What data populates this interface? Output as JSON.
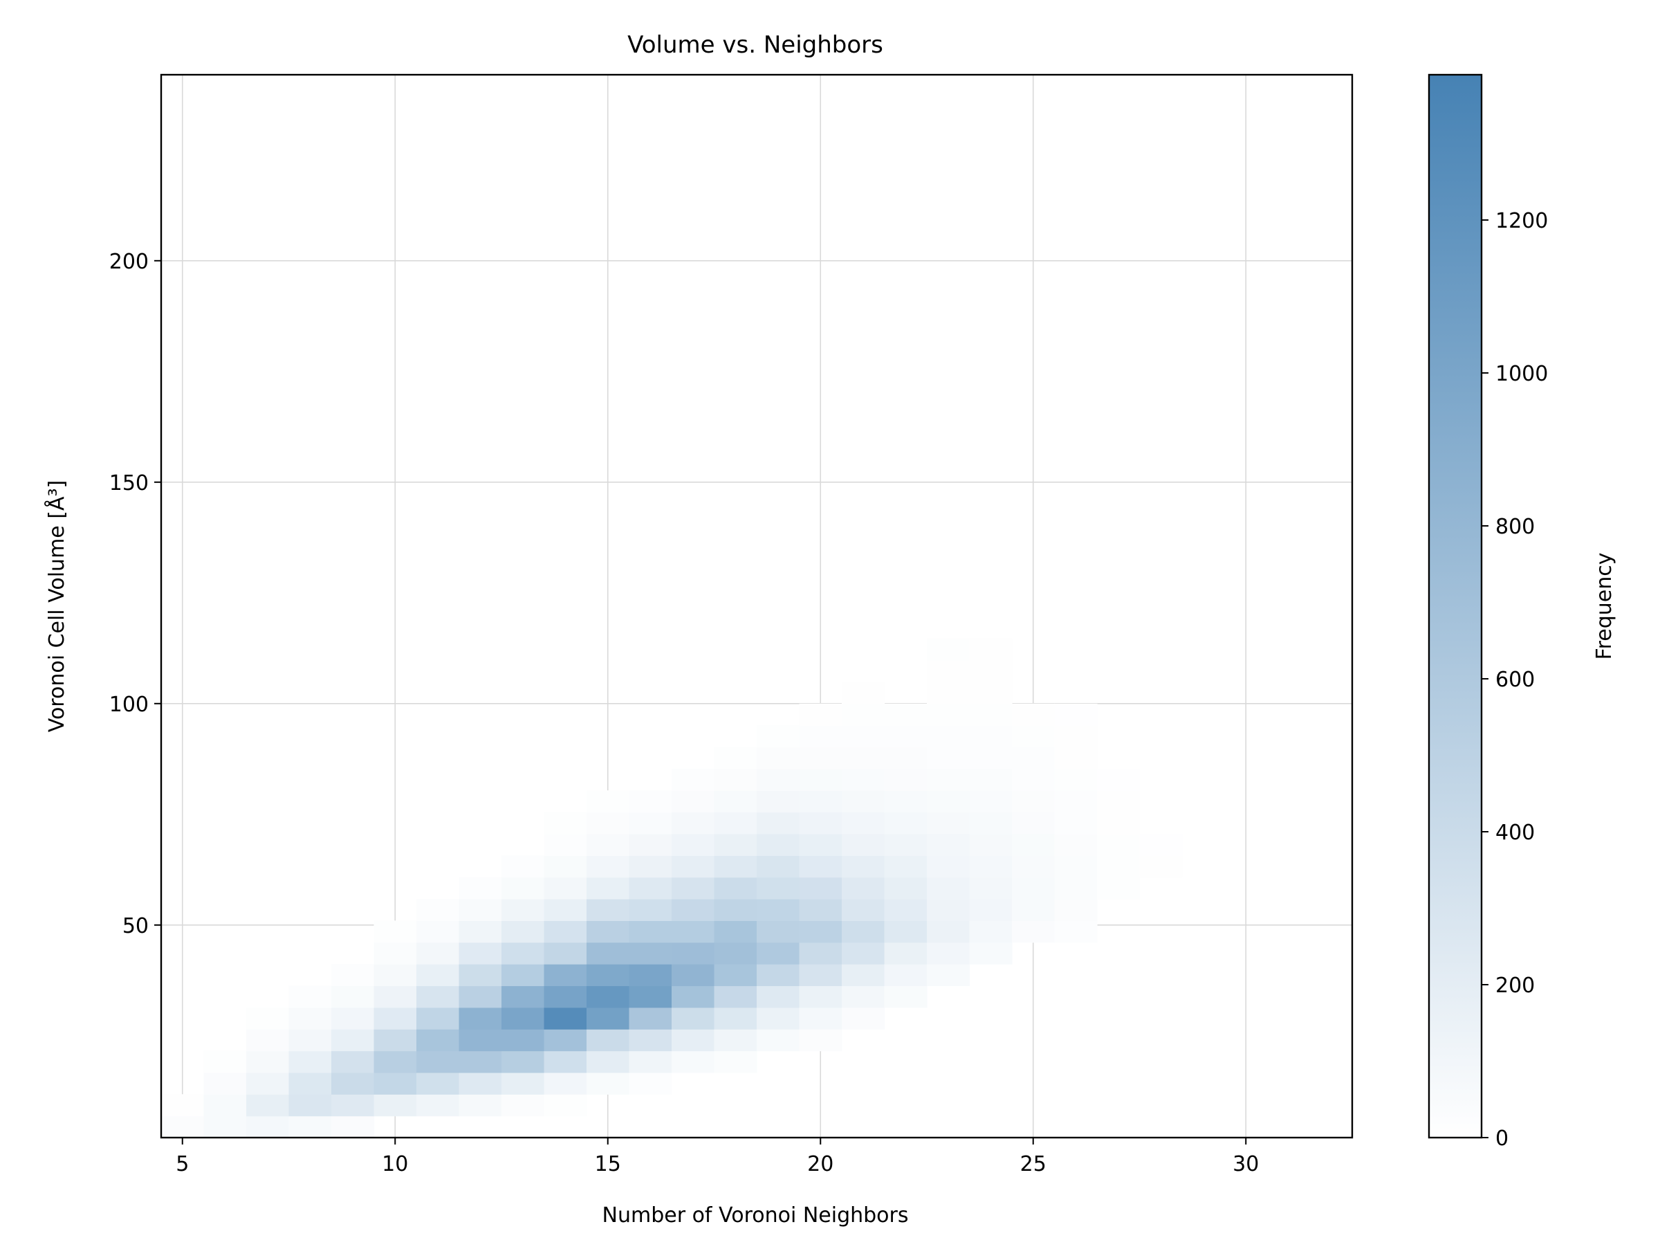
{
  "chart_data": {
    "type": "heatmap",
    "title": "Volume vs. Neighbors",
    "xlabel": "Number of Voronoi Neighbors",
    "ylabel": "Voronoi Cell Volume [Å³]",
    "xlim": [
      4.5,
      32.5
    ],
    "ylim": [
      2,
      242
    ],
    "xticks": [
      5,
      10,
      15,
      20,
      25,
      30
    ],
    "yticks": [
      50,
      100,
      150,
      200
    ],
    "grid": true,
    "colorbar": {
      "label": "Frequency",
      "range": [
        0,
        1390
      ],
      "ticks": [
        0,
        200,
        400,
        600,
        800,
        1000,
        1200
      ],
      "colors": [
        "#ffffff",
        "#4682b4"
      ]
    },
    "bins": {
      "x_start": 5,
      "x_width": 1,
      "y_start": 2,
      "y_width": 4.9
    },
    "cells": [
      [
        5,
        1,
        30
      ],
      [
        5,
        2,
        10
      ],
      [
        6,
        1,
        60
      ],
      [
        6,
        2,
        60
      ],
      [
        6,
        3,
        40
      ],
      [
        6,
        4,
        15
      ],
      [
        7,
        1,
        80
      ],
      [
        7,
        2,
        180
      ],
      [
        7,
        3,
        110
      ],
      [
        7,
        4,
        70
      ],
      [
        7,
        5,
        40
      ],
      [
        7,
        6,
        15
      ],
      [
        8,
        1,
        60
      ],
      [
        8,
        2,
        280
      ],
      [
        8,
        3,
        260
      ],
      [
        8,
        4,
        170
      ],
      [
        8,
        5,
        90
      ],
      [
        8,
        6,
        55
      ],
      [
        8,
        7,
        25
      ],
      [
        9,
        1,
        40
      ],
      [
        9,
        2,
        240
      ],
      [
        9,
        3,
        400
      ],
      [
        9,
        4,
        330
      ],
      [
        9,
        5,
        170
      ],
      [
        9,
        6,
        100
      ],
      [
        9,
        7,
        50
      ],
      [
        9,
        8,
        25
      ],
      [
        10,
        2,
        160
      ],
      [
        10,
        3,
        450
      ],
      [
        10,
        4,
        530
      ],
      [
        10,
        5,
        400
      ],
      [
        10,
        6,
        230
      ],
      [
        10,
        7,
        130
      ],
      [
        10,
        8,
        70
      ],
      [
        10,
        9,
        35
      ],
      [
        10,
        10,
        15
      ],
      [
        11,
        2,
        110
      ],
      [
        11,
        3,
        350
      ],
      [
        11,
        4,
        610
      ],
      [
        11,
        5,
        650
      ],
      [
        11,
        6,
        470
      ],
      [
        11,
        7,
        300
      ],
      [
        11,
        8,
        170
      ],
      [
        11,
        9,
        90
      ],
      [
        11,
        10,
        45
      ],
      [
        11,
        11,
        20
      ],
      [
        12,
        2,
        70
      ],
      [
        12,
        3,
        250
      ],
      [
        12,
        4,
        610
      ],
      [
        12,
        5,
        820
      ],
      [
        12,
        6,
        860
      ],
      [
        12,
        7,
        520
      ],
      [
        12,
        8,
        380
      ],
      [
        12,
        9,
        230
      ],
      [
        12,
        10,
        115
      ],
      [
        12,
        11,
        55
      ],
      [
        12,
        12,
        25
      ],
      [
        13,
        2,
        30
      ],
      [
        13,
        3,
        180
      ],
      [
        13,
        4,
        550
      ],
      [
        13,
        5,
        820
      ],
      [
        13,
        6,
        1000
      ],
      [
        13,
        7,
        860
      ],
      [
        13,
        8,
        560
      ],
      [
        13,
        9,
        360
      ],
      [
        13,
        10,
        200
      ],
      [
        13,
        11,
        110
      ],
      [
        13,
        12,
        50
      ],
      [
        13,
        13,
        25
      ],
      [
        14,
        2,
        15
      ],
      [
        14,
        3,
        100
      ],
      [
        14,
        4,
        360
      ],
      [
        14,
        5,
        690
      ],
      [
        14,
        6,
        1280
      ],
      [
        14,
        7,
        1020
      ],
      [
        14,
        8,
        860
      ],
      [
        14,
        9,
        460
      ],
      [
        14,
        10,
        320
      ],
      [
        14,
        11,
        170
      ],
      [
        14,
        12,
        90
      ],
      [
        14,
        13,
        50
      ],
      [
        14,
        14,
        25
      ],
      [
        14,
        15,
        15
      ],
      [
        15,
        3,
        50
      ],
      [
        15,
        4,
        200
      ],
      [
        15,
        5,
        400
      ],
      [
        15,
        6,
        1050
      ],
      [
        15,
        7,
        1150
      ],
      [
        15,
        8,
        960
      ],
      [
        15,
        9,
        720
      ],
      [
        15,
        10,
        520
      ],
      [
        15,
        11,
        330
      ],
      [
        15,
        12,
        170
      ],
      [
        15,
        13,
        100
      ],
      [
        15,
        14,
        55
      ],
      [
        15,
        15,
        30
      ],
      [
        15,
        16,
        15
      ],
      [
        16,
        3,
        25
      ],
      [
        16,
        4,
        110
      ],
      [
        16,
        5,
        310
      ],
      [
        16,
        6,
        640
      ],
      [
        16,
        7,
        1050
      ],
      [
        16,
        8,
        1000
      ],
      [
        16,
        9,
        720
      ],
      [
        16,
        10,
        560
      ],
      [
        16,
        11,
        360
      ],
      [
        16,
        12,
        250
      ],
      [
        16,
        13,
        140
      ],
      [
        16,
        14,
        85
      ],
      [
        16,
        15,
        45
      ],
      [
        16,
        16,
        25
      ],
      [
        17,
        4,
        60
      ],
      [
        17,
        5,
        190
      ],
      [
        17,
        6,
        380
      ],
      [
        17,
        7,
        680
      ],
      [
        17,
        8,
        830
      ],
      [
        17,
        9,
        730
      ],
      [
        17,
        10,
        560
      ],
      [
        17,
        11,
        430
      ],
      [
        17,
        12,
        310
      ],
      [
        17,
        13,
        190
      ],
      [
        17,
        14,
        120
      ],
      [
        17,
        15,
        75
      ],
      [
        17,
        16,
        40
      ],
      [
        17,
        17,
        20
      ],
      [
        18,
        4,
        35
      ],
      [
        18,
        5,
        110
      ],
      [
        18,
        6,
        260
      ],
      [
        18,
        7,
        430
      ],
      [
        18,
        8,
        650
      ],
      [
        18,
        9,
        700
      ],
      [
        18,
        10,
        650
      ],
      [
        18,
        11,
        480
      ],
      [
        18,
        12,
        390
      ],
      [
        18,
        13,
        250
      ],
      [
        18,
        14,
        160
      ],
      [
        18,
        15,
        95
      ],
      [
        18,
        16,
        60
      ],
      [
        18,
        17,
        30
      ],
      [
        18,
        18,
        15
      ],
      [
        19,
        5,
        60
      ],
      [
        19,
        6,
        150
      ],
      [
        19,
        7,
        250
      ],
      [
        19,
        8,
        440
      ],
      [
        19,
        9,
        600
      ],
      [
        19,
        10,
        510
      ],
      [
        19,
        11,
        470
      ],
      [
        19,
        12,
        350
      ],
      [
        19,
        13,
        290
      ],
      [
        19,
        14,
        200
      ],
      [
        19,
        15,
        140
      ],
      [
        19,
        16,
        85
      ],
      [
        19,
        17,
        55
      ],
      [
        19,
        18,
        30
      ],
      [
        19,
        19,
        15
      ],
      [
        20,
        5,
        30
      ],
      [
        20,
        6,
        80
      ],
      [
        20,
        7,
        150
      ],
      [
        20,
        8,
        310
      ],
      [
        20,
        9,
        400
      ],
      [
        20,
        10,
        500
      ],
      [
        20,
        11,
        400
      ],
      [
        20,
        12,
        340
      ],
      [
        20,
        13,
        230
      ],
      [
        20,
        14,
        170
      ],
      [
        20,
        15,
        120
      ],
      [
        20,
        16,
        80
      ],
      [
        20,
        17,
        50
      ],
      [
        20,
        18,
        30
      ],
      [
        20,
        19,
        20
      ],
      [
        20,
        20,
        10
      ],
      [
        21,
        6,
        40
      ],
      [
        21,
        7,
        90
      ],
      [
        21,
        8,
        180
      ],
      [
        21,
        9,
        300
      ],
      [
        21,
        10,
        370
      ],
      [
        21,
        11,
        280
      ],
      [
        21,
        12,
        240
      ],
      [
        21,
        13,
        190
      ],
      [
        21,
        14,
        130
      ],
      [
        21,
        15,
        100
      ],
      [
        21,
        16,
        70
      ],
      [
        21,
        17,
        45
      ],
      [
        21,
        18,
        30
      ],
      [
        21,
        19,
        20
      ],
      [
        21,
        20,
        15
      ],
      [
        21,
        21,
        10
      ],
      [
        22,
        7,
        50
      ],
      [
        22,
        8,
        100
      ],
      [
        22,
        9,
        160
      ],
      [
        22,
        10,
        250
      ],
      [
        22,
        11,
        210
      ],
      [
        22,
        12,
        180
      ],
      [
        22,
        13,
        150
      ],
      [
        22,
        14,
        110
      ],
      [
        22,
        15,
        80
      ],
      [
        22,
        16,
        60
      ],
      [
        22,
        17,
        40
      ],
      [
        22,
        18,
        30
      ],
      [
        22,
        19,
        20
      ],
      [
        22,
        20,
        12
      ],
      [
        23,
        8,
        60
      ],
      [
        23,
        9,
        100
      ],
      [
        23,
        10,
        140
      ],
      [
        23,
        11,
        130
      ],
      [
        23,
        12,
        120
      ],
      [
        23,
        13,
        100
      ],
      [
        23,
        14,
        90
      ],
      [
        23,
        15,
        70
      ],
      [
        23,
        16,
        50
      ],
      [
        23,
        17,
        35
      ],
      [
        23,
        18,
        25
      ],
      [
        23,
        19,
        20
      ],
      [
        23,
        20,
        15
      ],
      [
        23,
        21,
        10
      ],
      [
        23,
        22,
        10
      ],
      [
        23,
        23,
        15
      ],
      [
        24,
        9,
        60
      ],
      [
        24,
        10,
        80
      ],
      [
        24,
        11,
        100
      ],
      [
        24,
        12,
        90
      ],
      [
        24,
        13,
        80
      ],
      [
        24,
        14,
        70
      ],
      [
        24,
        15,
        60
      ],
      [
        24,
        16,
        45
      ],
      [
        24,
        17,
        35
      ],
      [
        24,
        18,
        25
      ],
      [
        24,
        19,
        20
      ],
      [
        24,
        20,
        15
      ],
      [
        24,
        21,
        10
      ],
      [
        24,
        22,
        10
      ],
      [
        24,
        23,
        10
      ],
      [
        25,
        10,
        40
      ],
      [
        25,
        11,
        60
      ],
      [
        25,
        12,
        60
      ],
      [
        25,
        13,
        55
      ],
      [
        25,
        14,
        50
      ],
      [
        25,
        15,
        40
      ],
      [
        25,
        16,
        30
      ],
      [
        25,
        17,
        25
      ],
      [
        25,
        18,
        20
      ],
      [
        25,
        19,
        12
      ],
      [
        25,
        20,
        10
      ],
      [
        26,
        10,
        20
      ],
      [
        26,
        11,
        30
      ],
      [
        26,
        12,
        35
      ],
      [
        26,
        13,
        35
      ],
      [
        26,
        14,
        30
      ],
      [
        26,
        15,
        25
      ],
      [
        26,
        16,
        20
      ],
      [
        26,
        17,
        15
      ],
      [
        26,
        18,
        10
      ],
      [
        26,
        19,
        10
      ],
      [
        26,
        20,
        8
      ],
      [
        27,
        12,
        15
      ],
      [
        27,
        13,
        15
      ],
      [
        27,
        14,
        15
      ],
      [
        27,
        15,
        10
      ],
      [
        27,
        16,
        10
      ],
      [
        27,
        17,
        8
      ],
      [
        28,
        13,
        10
      ],
      [
        28,
        14,
        8
      ]
    ]
  }
}
